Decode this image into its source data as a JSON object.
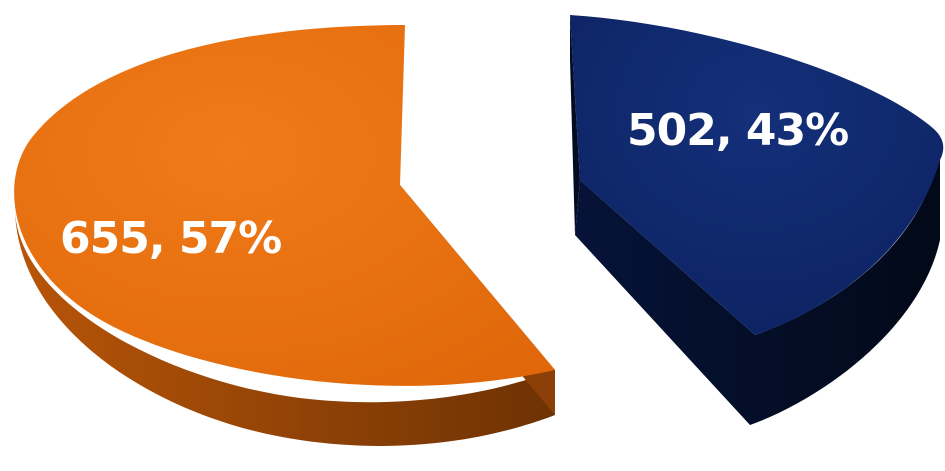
{
  "chart_data": {
    "type": "pie",
    "style": "3d-exploded",
    "legend": "none",
    "slices": [
      {
        "value": 655,
        "percent": 57,
        "label": "655, 57%",
        "color": "#E0680A",
        "side_color_light": "#B85508",
        "side_color_dark": "#6E3204"
      },
      {
        "value": 502,
        "percent": 43,
        "label": "502, 43%",
        "color": "#0C2260",
        "side_color_light": "#061338",
        "side_color_dark": "#020918"
      }
    ]
  }
}
